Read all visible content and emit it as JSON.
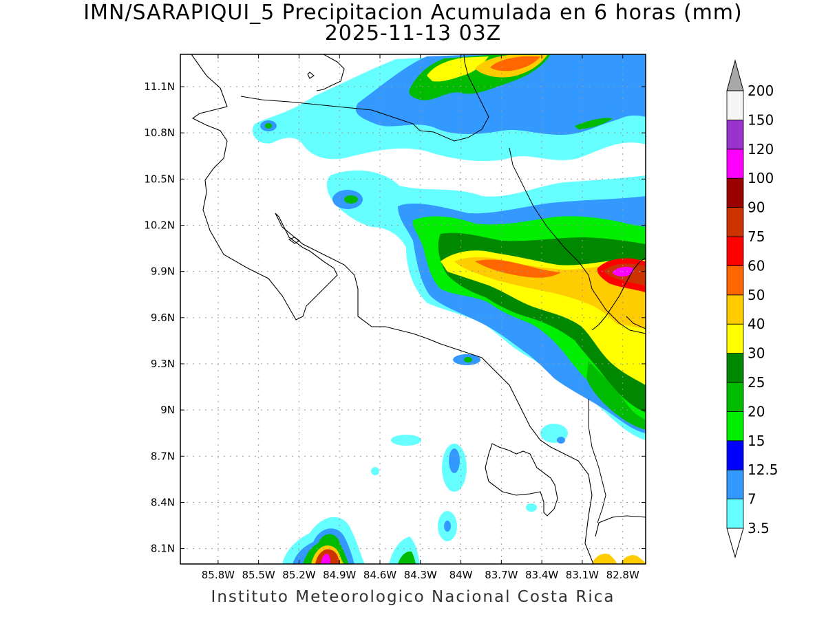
{
  "title": {
    "line1": "IMN/SARAPIQUI_5 Precipitacion Acumulada en 6 horas (mm)",
    "line2": "2025-11-13 03Z"
  },
  "footer": "Instituto Meteorologico Nacional Costa Rica",
  "map": {
    "lon_range": [
      -86.08,
      -82.63
    ],
    "lat_range": [
      8.0,
      11.31
    ],
    "grid": true,
    "x_ticks": [
      "85.8W",
      "85.5W",
      "85.2W",
      "84.9W",
      "84.6W",
      "84.3W",
      "84W",
      "83.7W",
      "83.4W",
      "83.1W",
      "82.8W"
    ],
    "x_tick_values": [
      -85.8,
      -85.5,
      -85.2,
      -84.9,
      -84.6,
      -84.3,
      -84.0,
      -83.7,
      -83.4,
      -83.1,
      -82.8
    ],
    "y_ticks": [
      "11.1N",
      "10.8N",
      "10.5N",
      "10.2N",
      "9.9N",
      "9.6N",
      "9.3N",
      "9N",
      "8.7N",
      "8.4N",
      "8.1N"
    ],
    "y_tick_values": [
      11.1,
      10.8,
      10.5,
      10.2,
      9.9,
      9.6,
      9.3,
      9.0,
      8.7,
      8.4,
      8.1
    ]
  },
  "colorbar": {
    "labels": [
      "3.5",
      "7",
      "12.5",
      "15",
      "20",
      "25",
      "30",
      "40",
      "50",
      "60",
      "75",
      "90",
      "100",
      "120",
      "150",
      "200"
    ],
    "colors": [
      "#66ffff",
      "#3399ff",
      "#0000ff",
      "#00ee00",
      "#00bb00",
      "#008800",
      "#ffff00",
      "#ffcc00",
      "#ff6600",
      "#ff0000",
      "#cc3300",
      "#990000",
      "#ff00ff",
      "#9933cc",
      "#f5f5f5"
    ],
    "lower_cap": "#ffffff",
    "upper_cap": "#a8a8a8"
  }
}
